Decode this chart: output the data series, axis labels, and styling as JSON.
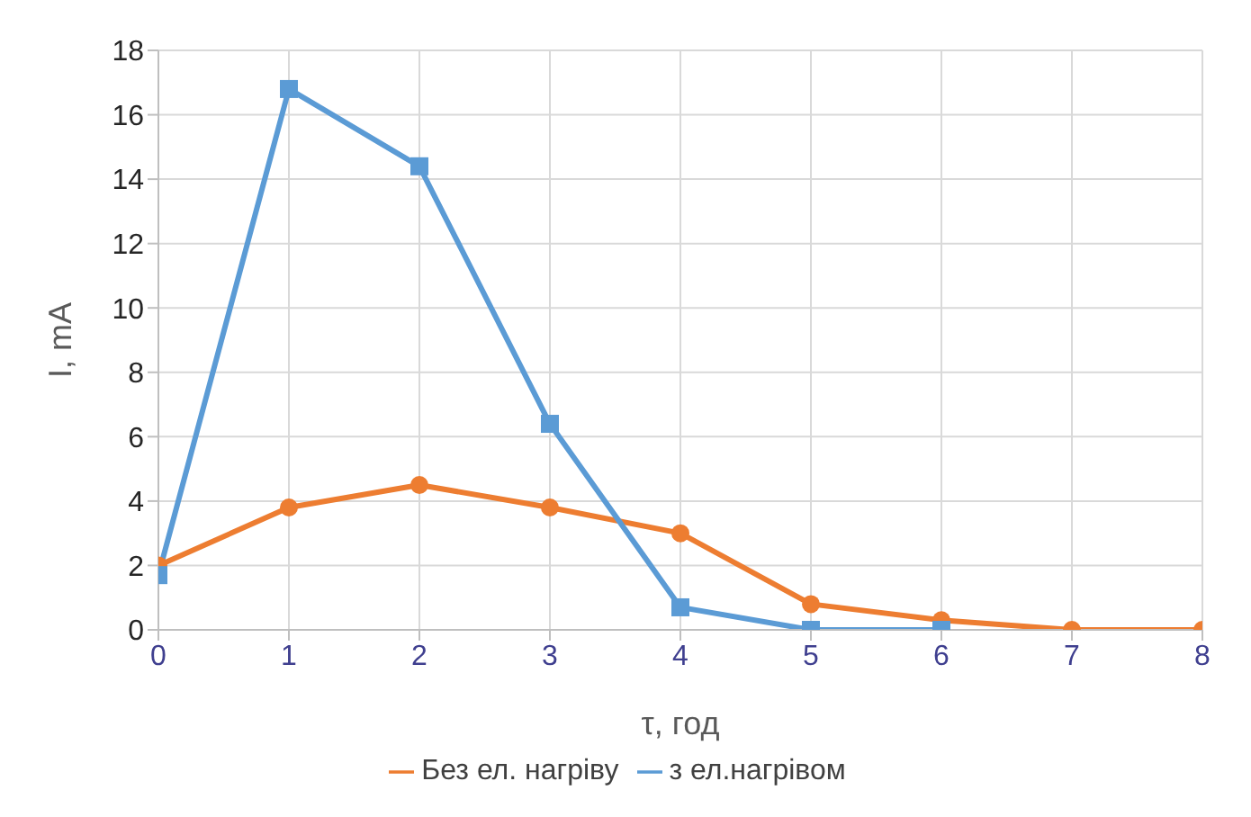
{
  "chart_data": {
    "type": "line",
    "xlabel": "τ, год",
    "ylabel": "I, mA",
    "x": [
      0,
      1,
      2,
      3,
      4,
      5,
      6,
      7,
      8
    ],
    "xlim": [
      0,
      8
    ],
    "xticks": [
      0,
      1,
      2,
      3,
      4,
      5,
      6,
      7,
      8
    ],
    "ylim": [
      0,
      18
    ],
    "yticks": [
      0,
      2,
      4,
      6,
      8,
      10,
      12,
      14,
      16,
      18
    ],
    "grid": true,
    "legend": "bottom",
    "series": [
      {
        "name": "Без ел. нагріву",
        "color": "#ed7d31",
        "marker": "circle",
        "values": [
          2.0,
          3.8,
          4.5,
          3.8,
          3.0,
          0.8,
          0.3,
          0,
          0
        ]
      },
      {
        "name": "з ел.нагрівом",
        "color": "#5b9bd5",
        "marker": "square",
        "x": [
          0,
          1,
          2,
          3,
          4,
          5,
          6
        ],
        "values": [
          1.7,
          16.8,
          14.4,
          6.4,
          0.7,
          0,
          0
        ]
      }
    ]
  }
}
